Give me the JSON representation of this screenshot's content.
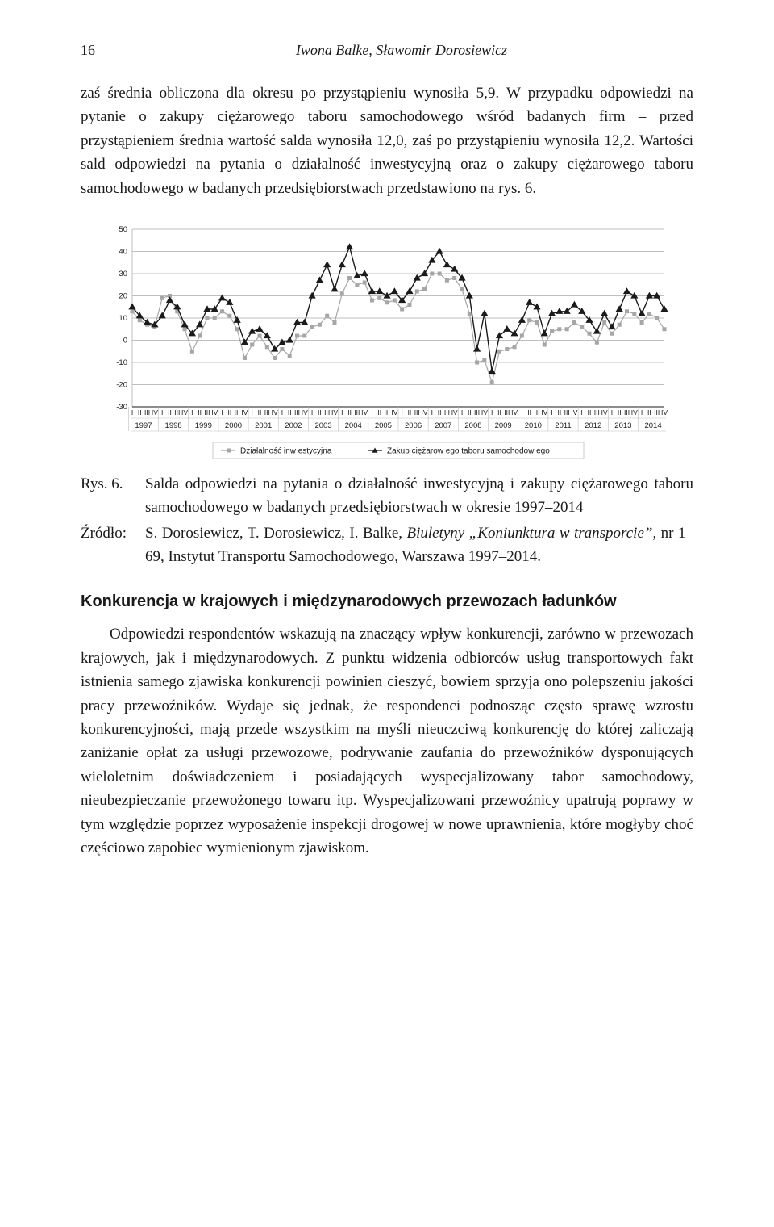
{
  "page_number": "16",
  "running_head": "Iwona Balke, Sławomir Dorosiewicz",
  "para1": "zaś średnia obliczona dla okresu po przystąpieniu wynosiła 5,9. W przypadku odpowiedzi na pytanie o zakupy ciężarowego taboru samochodowego wśród badanych firm – przed przystąpieniem średnia wartość salda wynosiła 12,0, zaś po przystąpieniu wynosiła 12,2. Wartości sald odpowiedzi na pytania o działalność inwestycyjną oraz o zakupy ciężarowego taboru samochodowego w badanych przedsiębiorstwach przedstawiono na rys. 6.",
  "fig6": {
    "label": "Rys. 6.",
    "caption": "Salda odpowiedzi na pytania o działalność inwestycyjną i zakupy ciężarowego taboru samochodowego w badanych przedsiębiorstwach w okresie 1997–2014"
  },
  "source": {
    "label": "Źródło:",
    "prefix": "S. Dorosiewicz, T. Dorosiewicz, I. Balke, ",
    "italic": "Biuletyny „Koniunktura w transporcie”",
    "suffix": ", nr 1–69, Instytut Transportu Samochodowego, Warszawa 1997–2014."
  },
  "section_title": "Konkurencja w krajowych i międzynarodowych przewozach ładunków",
  "para2": "Odpowiedzi respondentów wskazują na znaczący wpływ konkurencji, zarówno w przewozach krajowych, jak i międzynarodowych. Z punktu widzenia odbiorców usług transportowych fakt istnienia samego zjawiska konkurencji powinien cieszyć, bowiem sprzyja ono polepszeniu jakości pracy przewoź­ników. Wydaje się jednak, że respondenci podnosząc często sprawę wzrostu konkurencyjności, mają przede wszystkim na myśli nieuczciwą konkurencję do której zaliczają zaniżanie opłat za usługi przewozowe, podrywanie zaufania do przewoźników dysponujących wieloletnim doświadczeniem i posiadających wyspecjalizowany tabor samochodowy, nieubezpieczanie przewożonego towaru itp. Wyspecjalizowani przewoźnicy upatrują poprawy w tym względzie poprzez wyposażenie inspekcji drogowej w nowe uprawnienia, które mogłyby choć częściowo zapobiec wymienionym zjawiskom.",
  "chart": {
    "type": "line",
    "background_color": "#ffffff",
    "grid_color": "#bfbfbf",
    "axis_color": "#1a1a1a",
    "ylim": [
      -30,
      50
    ],
    "ytick_step": 10,
    "yticks": [
      -30,
      -20,
      -10,
      0,
      10,
      20,
      30,
      40,
      50
    ],
    "years": [
      1997,
      1998,
      1999,
      2000,
      2001,
      2002,
      2003,
      2004,
      2005,
      2006,
      2007,
      2008,
      2009,
      2010,
      2011,
      2012,
      2013,
      2014
    ],
    "quarters_per_year": [
      "I",
      "II",
      "III",
      "IV"
    ],
    "legend": {
      "border_color": "#bfbfbf",
      "items": [
        {
          "label": "Działalność inw estycyjna",
          "marker": "square",
          "color": "#a6a6a6"
        },
        {
          "label": "Zakup ciężarow ego taboru samochodow ego",
          "marker": "triangle",
          "color": "#1a1a1a"
        }
      ]
    },
    "series": [
      {
        "name": "Działalność inwestycyjna",
        "color": "#a6a6a6",
        "marker": "square",
        "marker_size": 4,
        "line_width": 1.2,
        "values": [
          13,
          9,
          7,
          6,
          19,
          20,
          13,
          5,
          -5,
          2,
          10,
          10,
          13,
          11,
          5,
          -8,
          -2,
          2,
          -3,
          -8,
          -4,
          -7,
          2,
          2,
          6,
          7,
          11,
          8,
          21,
          28,
          25,
          26,
          18,
          19,
          17,
          18,
          14,
          16,
          22,
          23,
          30,
          30,
          27,
          28,
          23,
          12,
          -10,
          -9,
          -19,
          -5,
          -4,
          -3,
          2,
          9,
          8,
          -2,
          4,
          5,
          5,
          8,
          6,
          3,
          -1,
          8,
          3,
          7,
          13,
          12,
          8,
          12,
          10,
          5
        ]
      },
      {
        "name": "Zakup ciężarowego taboru samochodowego",
        "color": "#1a1a1a",
        "marker": "triangle",
        "marker_size": 5,
        "line_width": 1.4,
        "values": [
          15,
          11,
          8,
          7,
          11,
          18,
          15,
          7,
          3,
          7,
          14,
          14,
          19,
          17,
          9,
          -1,
          4,
          5,
          2,
          -4,
          -1,
          0,
          8,
          8,
          20,
          27,
          34,
          23,
          34,
          42,
          29,
          30,
          22,
          22,
          20,
          22,
          18,
          22,
          28,
          30,
          36,
          40,
          34,
          32,
          28,
          20,
          -4,
          12,
          -14,
          2,
          5,
          3,
          9,
          17,
          15,
          3,
          12,
          13,
          13,
          16,
          13,
          9,
          4,
          12,
          6,
          14,
          22,
          20,
          12,
          20,
          20,
          14
        ]
      }
    ]
  }
}
